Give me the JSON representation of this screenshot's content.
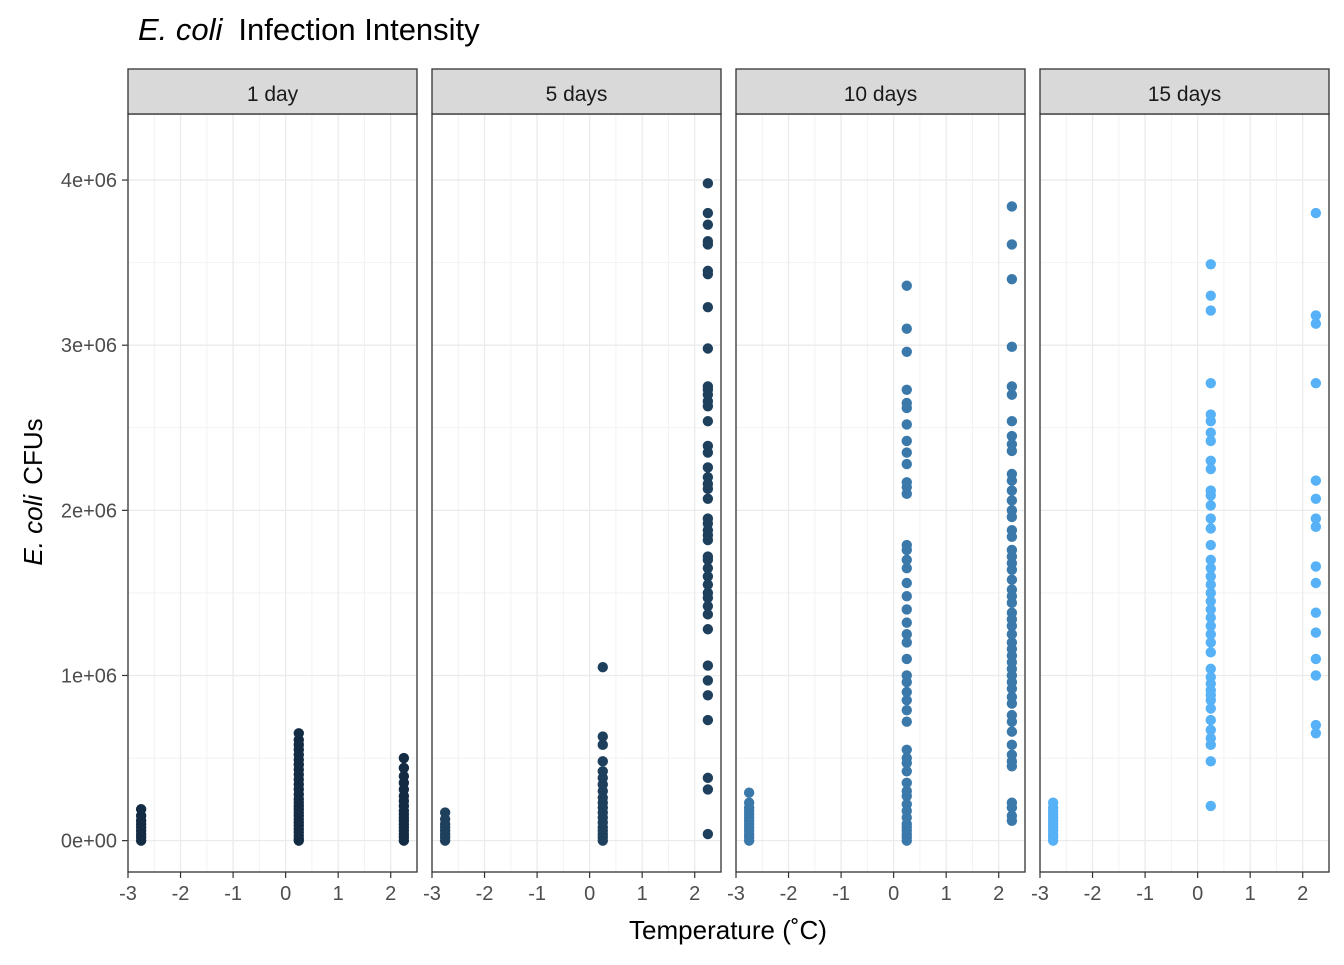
{
  "chart_data": {
    "type": "scatter",
    "title": {
      "italic": "E. coli",
      "rest": "Infection Intensity"
    },
    "xlabel": "Temperature (˚C)",
    "ylabel": {
      "italic": "E. coli",
      "rest": "CFUs"
    },
    "x_ticks": [
      "-3",
      "-2",
      "-1",
      "0",
      "1",
      "2"
    ],
    "x_tick_values": [
      -3,
      -2,
      -1,
      0,
      1,
      2
    ],
    "y_ticks": [
      "0e+00",
      "1e+06",
      "2e+06",
      "3e+06",
      "4e+06"
    ],
    "y_tick_values": [
      0,
      1000000,
      2000000,
      3000000,
      4000000
    ],
    "xlim": [
      -3,
      2.5
    ],
    "ylim": [
      -190000,
      4400000
    ],
    "grid": true,
    "legend": "none",
    "temperatures": [
      -2.75,
      0.25,
      2.25
    ],
    "panels": [
      {
        "label": "1 day",
        "color": "#132b43",
        "points": [
          [
            -2.75,
            [
              0,
              20000,
              40000,
              60000,
              80000,
              100000,
              120000,
              150000,
              190000
            ]
          ],
          [
            0.25,
            [
              0,
              10000,
              30000,
              50000,
              70000,
              90000,
              110000,
              130000,
              150000,
              170000,
              190000,
              210000,
              230000,
              250000,
              280000,
              310000,
              340000,
              370000,
              400000,
              430000,
              460000,
              490000,
              520000,
              550000,
              580000,
              610000,
              650000
            ]
          ],
          [
            2.25,
            [
              0,
              20000,
              40000,
              60000,
              80000,
              100000,
              120000,
              140000,
              160000,
              180000,
              210000,
              240000,
              270000,
              310000,
              350000,
              390000,
              440000,
              500000
            ]
          ]
        ]
      },
      {
        "label": "5 days",
        "color": "#1f405d",
        "points": [
          [
            -2.75,
            [
              0,
              20000,
              40000,
              60000,
              80000,
              100000,
              130000,
              170000
            ]
          ],
          [
            0.25,
            [
              0,
              20000,
              40000,
              60000,
              80000,
              110000,
              140000,
              170000,
              200000,
              230000,
              260000,
              300000,
              340000,
              380000,
              420000,
              480000,
              580000,
              630000,
              1050000
            ]
          ],
          [
            2.25,
            [
              40000,
              310000,
              380000,
              730000,
              880000,
              970000,
              1060000,
              1280000,
              1370000,
              1420000,
              1470000,
              1500000,
              1550000,
              1600000,
              1650000,
              1700000,
              1720000,
              1820000,
              1850000,
              1880000,
              1920000,
              1950000,
              2070000,
              2130000,
              2160000,
              2200000,
              2260000,
              2350000,
              2390000,
              2540000,
              2630000,
              2660000,
              2700000,
              2730000,
              2750000,
              2980000,
              3230000,
              3430000,
              3450000,
              3610000,
              3630000,
              3730000,
              3800000,
              3980000
            ]
          ]
        ]
      },
      {
        "label": "10 days",
        "color": "#3b79ab",
        "points": [
          [
            -2.75,
            [
              0,
              20000,
              40000,
              60000,
              80000,
              100000,
              120000,
              140000,
              160000,
              180000,
              200000,
              230000,
              290000
            ]
          ],
          [
            0.25,
            [
              0,
              20000,
              40000,
              60000,
              80000,
              100000,
              140000,
              180000,
              220000,
              270000,
              300000,
              350000,
              420000,
              470000,
              500000,
              550000,
              720000,
              790000,
              850000,
              900000,
              960000,
              1000000,
              1100000,
              1200000,
              1250000,
              1320000,
              1400000,
              1480000,
              1560000,
              1650000,
              1700000,
              1760000,
              1790000,
              2100000,
              2140000,
              2170000,
              2280000,
              2350000,
              2420000,
              2520000,
              2620000,
              2650000,
              2730000,
              2960000,
              3100000,
              3360000
            ]
          ],
          [
            2.25,
            [
              120000,
              150000,
              200000,
              230000,
              450000,
              480000,
              520000,
              580000,
              660000,
              720000,
              760000,
              830000,
              870000,
              920000,
              960000,
              1000000,
              1040000,
              1080000,
              1120000,
              1160000,
              1200000,
              1250000,
              1300000,
              1340000,
              1380000,
              1440000,
              1480000,
              1520000,
              1580000,
              1640000,
              1680000,
              1720000,
              1760000,
              1840000,
              1880000,
              1960000,
              2000000,
              2060000,
              2120000,
              2180000,
              2220000,
              2360000,
              2400000,
              2450000,
              2540000,
              2700000,
              2750000,
              2990000,
              3400000,
              3610000,
              3840000
            ]
          ]
        ]
      },
      {
        "label": "15 days",
        "color": "#56b1f7",
        "points": [
          [
            -2.75,
            [
              0,
              20000,
              40000,
              60000,
              80000,
              100000,
              120000,
              140000,
              160000,
              180000,
              200000,
              230000
            ]
          ],
          [
            0.25,
            [
              210000,
              480000,
              580000,
              620000,
              670000,
              730000,
              800000,
              850000,
              880000,
              910000,
              950000,
              990000,
              1040000,
              1140000,
              1200000,
              1250000,
              1300000,
              1350000,
              1400000,
              1450000,
              1500000,
              1550000,
              1600000,
              1650000,
              1700000,
              1790000,
              1890000,
              1950000,
              2030000,
              2090000,
              2120000,
              2250000,
              2300000,
              2420000,
              2470000,
              2540000,
              2580000,
              2770000,
              3210000,
              3300000,
              3490000
            ]
          ],
          [
            2.25,
            [
              650000,
              700000,
              1000000,
              1100000,
              1260000,
              1380000,
              1560000,
              1660000,
              1900000,
              1950000,
              2070000,
              2180000,
              2770000,
              3130000,
              3180000,
              3800000
            ]
          ]
        ]
      }
    ]
  }
}
